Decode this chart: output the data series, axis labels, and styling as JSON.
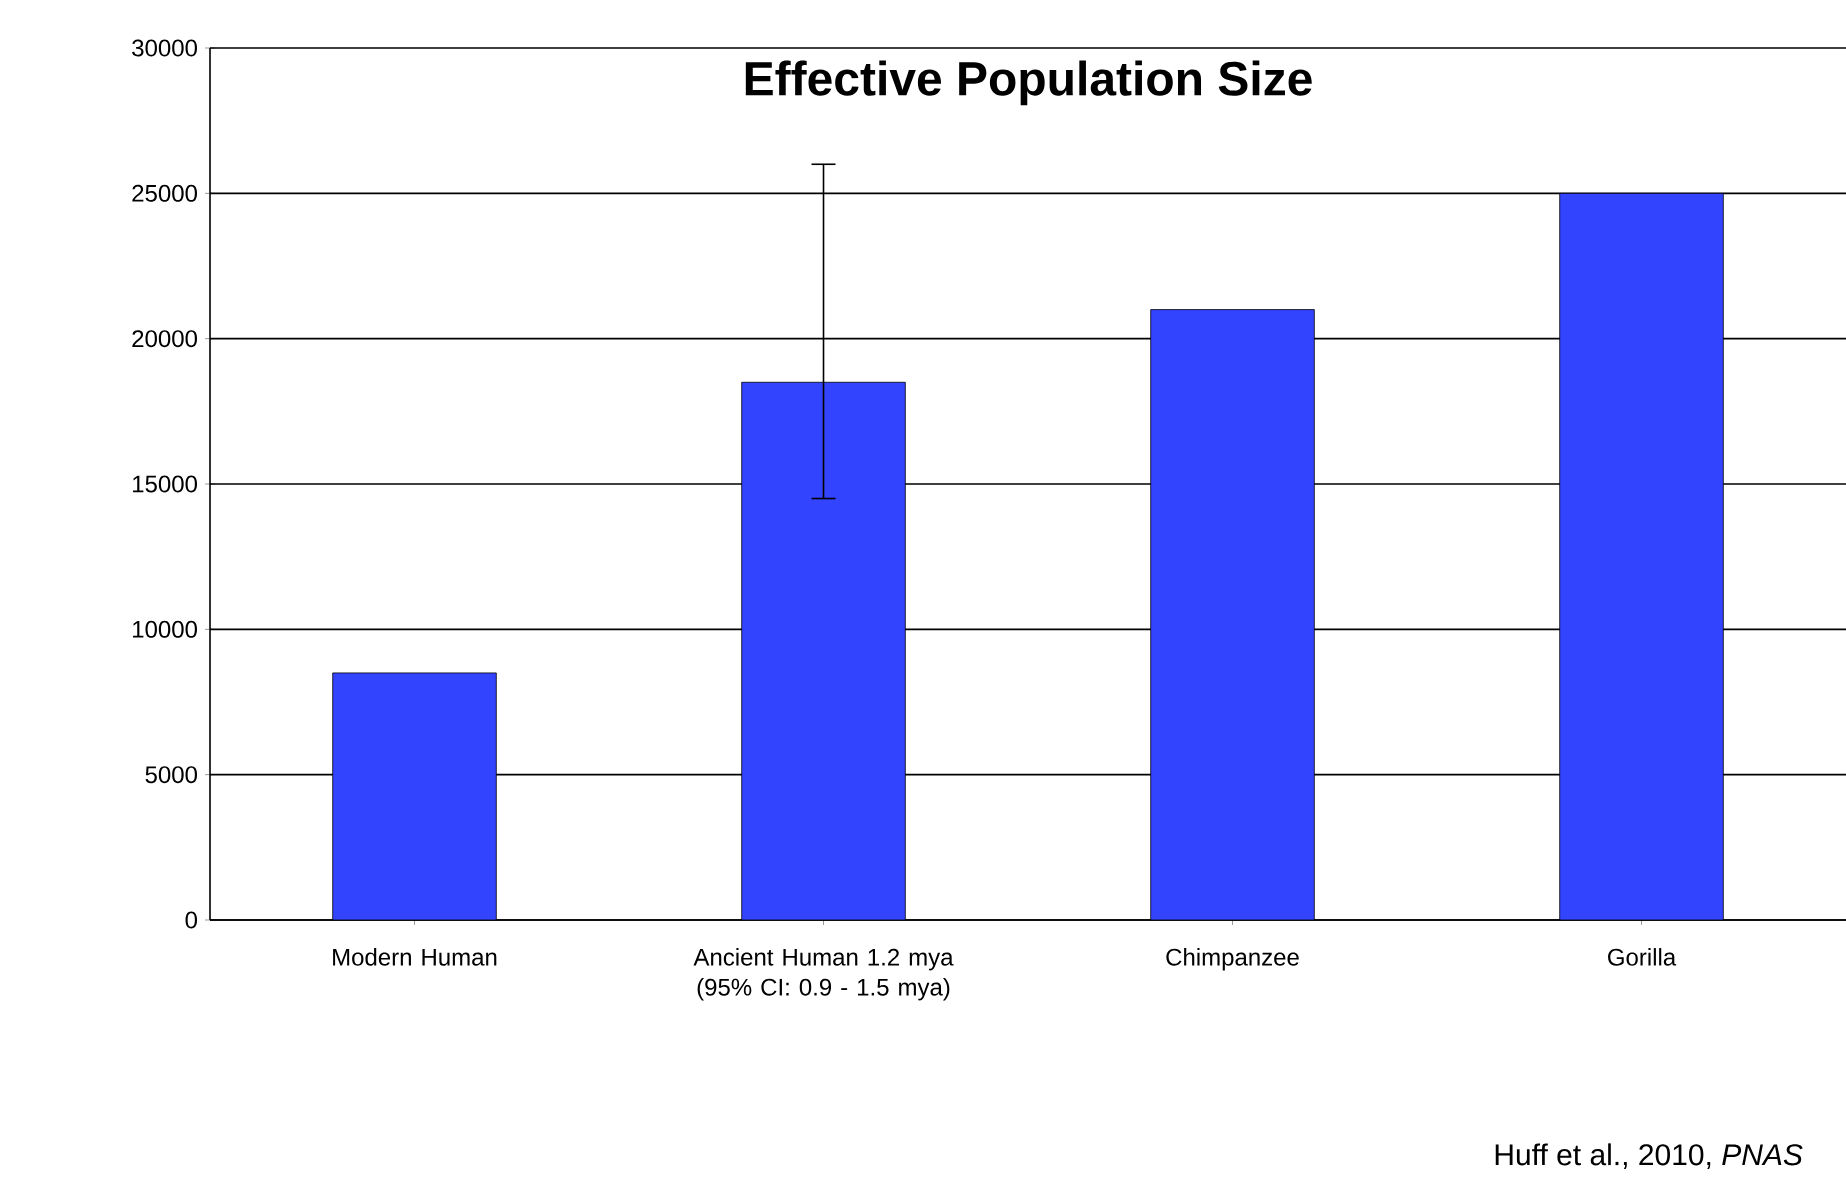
{
  "chart_data": {
    "type": "bar",
    "title": "Effective Population Size",
    "categories": [
      "Modern Human",
      "Ancient Human 1.2 mya (95% CI: 0.9 - 1.5 mya)",
      "Chimpanzee",
      "Gorilla"
    ],
    "values": [
      8500,
      18500,
      21000,
      25000
    ],
    "errors": [
      null,
      [
        14500,
        26000
      ],
      null,
      null
    ],
    "color": "#3344ff",
    "ylim": [
      0,
      30000
    ],
    "yticks": [
      0,
      5000,
      10000,
      15000,
      20000,
      25000,
      30000
    ],
    "grid": "y",
    "annotations": [
      "Huff et al., 2010, *PNAS*"
    ]
  }
}
